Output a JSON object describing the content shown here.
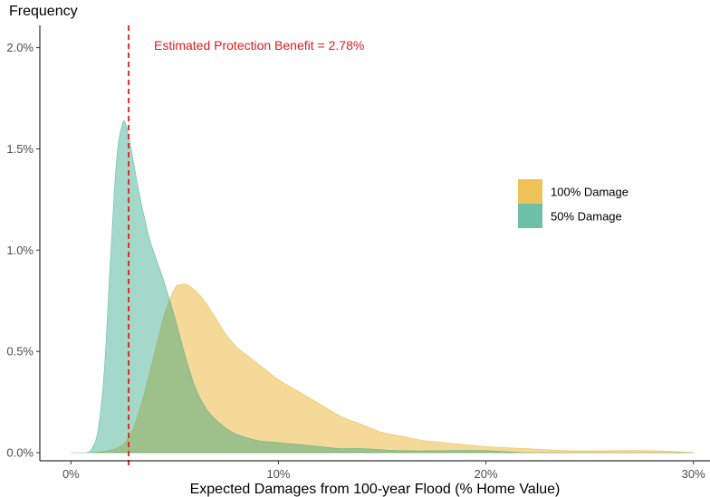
{
  "chart_data": {
    "type": "area",
    "ylabel": "Frequency",
    "xlabel": "Expected Damages from 100-year Flood (% Home Value)",
    "xlim": [
      -1.5,
      30.8
    ],
    "ylim": [
      -0.0004,
      0.0211
    ],
    "x_ticks": [
      {
        "value": 0,
        "label": "0%"
      },
      {
        "value": 10,
        "label": "10%"
      },
      {
        "value": 20,
        "label": "20%"
      },
      {
        "value": 30,
        "label": "30%"
      }
    ],
    "y_ticks": [
      {
        "value": 0.0,
        "label": "0.0%"
      },
      {
        "value": 0.005,
        "label": "0.5%"
      },
      {
        "value": 0.01,
        "label": "1.0%"
      },
      {
        "value": 0.015,
        "label": "1.5%"
      },
      {
        "value": 0.02,
        "label": "2.0%"
      }
    ],
    "grid": false,
    "legend_position": "right",
    "annotation": {
      "text": "Estimated Protection Benefit = 2.78%",
      "x": 2.78,
      "color": "#e41a1c"
    },
    "series": [
      {
        "name": "100% Damage",
        "fill": "#E69F00",
        "opacity": 0.4,
        "x": [
          1.0,
          1.8,
          2.5,
          3.0,
          3.5,
          4.0,
          4.5,
          5.0,
          5.3,
          5.6,
          6.0,
          6.5,
          7.0,
          7.5,
          8.0,
          8.5,
          9.0,
          9.5,
          10.0,
          11.0,
          12.0,
          13.0,
          14.0,
          15.0,
          16.0,
          17.0,
          18.0,
          20.0,
          22.0,
          24.0,
          26.0,
          28.0,
          30.0
        ],
        "y": [
          0.0,
          0.0001,
          0.0004,
          0.0012,
          0.0028,
          0.0048,
          0.0068,
          0.0081,
          0.0083,
          0.0083,
          0.008,
          0.0074,
          0.0066,
          0.0058,
          0.0052,
          0.0048,
          0.0044,
          0.004,
          0.0036,
          0.003,
          0.0024,
          0.0018,
          0.0014,
          0.001,
          0.0008,
          0.0006,
          0.0005,
          0.0003,
          0.0002,
          0.0001,
          0.0001,
          0.0001,
          0.0
        ]
      },
      {
        "name": "50% Damage",
        "fill": "#1B9E77",
        "opacity": 0.4,
        "x": [
          0.0,
          0.7,
          1.0,
          1.3,
          1.6,
          1.9,
          2.2,
          2.5,
          2.7,
          2.9,
          3.2,
          3.5,
          3.8,
          4.1,
          4.5,
          5.0,
          5.5,
          6.0,
          6.5,
          7.0,
          7.5,
          8.0,
          9.0,
          10.0,
          11.0,
          12.0,
          13.0,
          14.0,
          16.0,
          18.0,
          20.0,
          22.0,
          26.0,
          30.0
        ],
        "y": [
          0.0,
          0.0,
          0.0002,
          0.0011,
          0.004,
          0.0095,
          0.0145,
          0.0163,
          0.016,
          0.015,
          0.0133,
          0.0118,
          0.0105,
          0.0096,
          0.0084,
          0.0067,
          0.0048,
          0.0032,
          0.0022,
          0.0016,
          0.0012,
          0.0009,
          0.0006,
          0.0005,
          0.0004,
          0.0003,
          0.0002,
          0.0002,
          0.0001,
          0.0001,
          0.0001,
          0.0,
          0.0,
          0.0
        ]
      }
    ]
  }
}
